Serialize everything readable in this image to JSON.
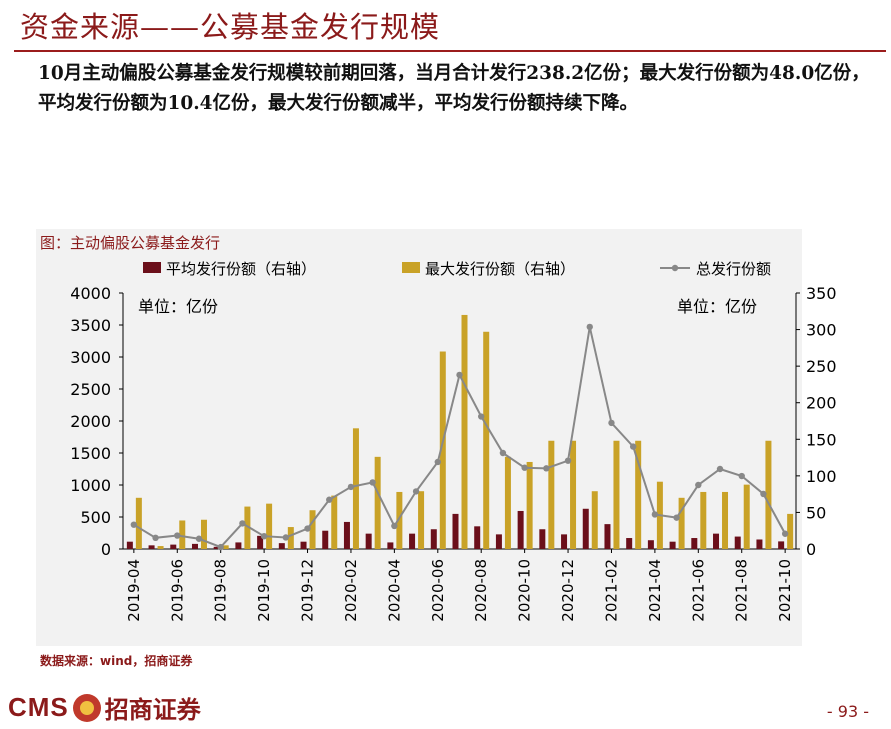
{
  "header": {
    "title": "资金来源——公募基金发行规模",
    "summary": "10月主动偏股公募基金发行规模较前期回落，当月合计发行238.2亿份；最大发行份额为48.0亿份，平均发行份额为10.4亿份，最大发行份额减半，平均发行份额持续下降。"
  },
  "figure": {
    "title": "图：主动偏股公募基金发行",
    "unit_left": "单位：亿份",
    "unit_right": "单位：亿份"
  },
  "chart_data": {
    "type": "bar+line",
    "categories": [
      "2019-04",
      "2019-05",
      "2019-06",
      "2019-07",
      "2019-08",
      "2019-09",
      "2019-10",
      "2019-11",
      "2019-12",
      "2020-01",
      "2020-02",
      "2020-03",
      "2020-04",
      "2020-05",
      "2020-06",
      "2020-07",
      "2020-08",
      "2020-09",
      "2020-10",
      "2020-11",
      "2020-12",
      "2021-01",
      "2021-02",
      "2021-03",
      "2021-04",
      "2021-05",
      "2021-06",
      "2021-07",
      "2021-08",
      "2021-09",
      "2021-10"
    ],
    "tick_labels": [
      "2019-04",
      "2019-06",
      "2019-08",
      "2019-10",
      "2019-12",
      "2020-02",
      "2020-04",
      "2020-06",
      "2020-08",
      "2020-10",
      "2020-12",
      "2021-02",
      "2021-04",
      "2021-06",
      "2021-08",
      "2021-10"
    ],
    "left_axis": {
      "min": 0,
      "max": 4000,
      "ticks": [
        "0",
        "500",
        "1000",
        "1500",
        "2000",
        "2500",
        "3000",
        "3500",
        "4000"
      ]
    },
    "right_axis": {
      "min": 0,
      "max": 350,
      "ticks": [
        "0",
        "50",
        "100",
        "150",
        "200",
        "250",
        "300",
        "350"
      ]
    },
    "series": [
      {
        "name": "平均发行份额（右轴）",
        "type": "bar",
        "axis": "right",
        "color": "#6b0f1a",
        "values": [
          10,
          5,
          6,
          7,
          3,
          9,
          18,
          8,
          10,
          25,
          37,
          21,
          9,
          21,
          27,
          48,
          31,
          20,
          52,
          27,
          20,
          55,
          34,
          15,
          12,
          10,
          15,
          21,
          17,
          13,
          10.4
        ]
      },
      {
        "name": "最大发行份额（右轴）",
        "type": "bar",
        "axis": "right",
        "color": "#c9a227",
        "values": [
          70,
          4,
          39,
          40,
          5,
          58,
          62,
          30,
          53,
          73,
          165,
          126,
          78,
          79,
          270,
          320,
          297,
          126,
          119,
          148,
          148,
          79,
          148,
          148,
          92,
          70,
          78,
          78,
          88,
          148,
          48
        ]
      },
      {
        "name": "总发行份额",
        "type": "line",
        "axis": "left",
        "color": "#888888",
        "values": [
          380,
          175,
          210,
          160,
          30,
          400,
          200,
          180,
          320,
          770,
          970,
          1040,
          360,
          900,
          1360,
          2720,
          2070,
          1500,
          1270,
          1260,
          1380,
          3470,
          1970,
          1600,
          540,
          490,
          1000,
          1250,
          1140,
          860,
          238.2
        ]
      }
    ]
  },
  "footer": {
    "source": "数据来源：wind，招商证券",
    "logo_en": "CMS",
    "logo_cn": "招商证券",
    "page": "- 93 -"
  }
}
